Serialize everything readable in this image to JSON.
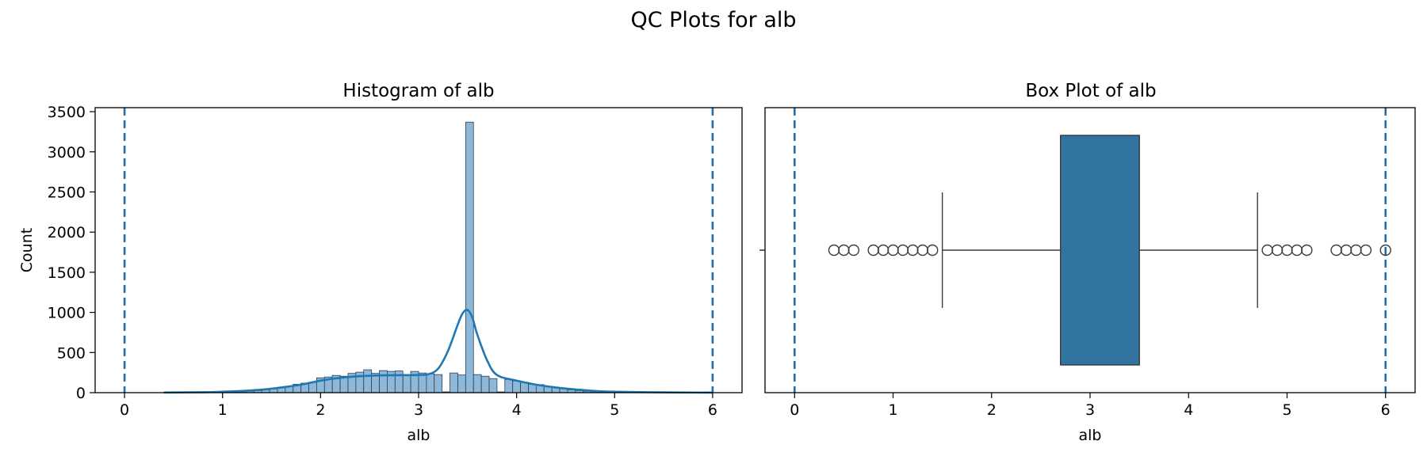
{
  "figure": {
    "title": "QC Plots for alb"
  },
  "colors": {
    "bar_fill": "#8db8da",
    "bar_edge": "#2b3f52",
    "kde": "#1f77b4",
    "box_fill": "#3274a1",
    "box_edge": "#3c3c3c",
    "threshold": "#1f6fb0",
    "flier_edge": "#3c3c3c"
  },
  "chart_data": [
    {
      "type": "bar",
      "title": "Histogram of alb",
      "xlabel": "alb",
      "ylabel": "Count",
      "xlim": [
        -0.3,
        6.3
      ],
      "ylim": [
        0,
        3550
      ],
      "xticks": [
        0,
        1,
        2,
        3,
        4,
        5,
        6
      ],
      "yticks": [
        0,
        500,
        1000,
        1500,
        2000,
        2500,
        3000,
        3500
      ],
      "bin_width": 0.08,
      "bins": [
        {
          "x": 1.12,
          "count": 8
        },
        {
          "x": 1.2,
          "count": 12
        },
        {
          "x": 1.28,
          "count": 18
        },
        {
          "x": 1.36,
          "count": 26
        },
        {
          "x": 1.44,
          "count": 36
        },
        {
          "x": 1.52,
          "count": 48
        },
        {
          "x": 1.6,
          "count": 62
        },
        {
          "x": 1.68,
          "count": 80
        },
        {
          "x": 1.76,
          "count": 105
        },
        {
          "x": 1.84,
          "count": 118
        },
        {
          "x": 1.92,
          "count": 128
        },
        {
          "x": 2.0,
          "count": 185
        },
        {
          "x": 2.08,
          "count": 195
        },
        {
          "x": 2.16,
          "count": 215
        },
        {
          "x": 2.24,
          "count": 205
        },
        {
          "x": 2.32,
          "count": 240
        },
        {
          "x": 2.4,
          "count": 255
        },
        {
          "x": 2.48,
          "count": 285
        },
        {
          "x": 2.56,
          "count": 240
        },
        {
          "x": 2.64,
          "count": 275
        },
        {
          "x": 2.72,
          "count": 265
        },
        {
          "x": 2.8,
          "count": 270
        },
        {
          "x": 2.88,
          "count": 225
        },
        {
          "x": 2.96,
          "count": 265
        },
        {
          "x": 3.04,
          "count": 245
        },
        {
          "x": 3.12,
          "count": 235
        },
        {
          "x": 3.2,
          "count": 225
        },
        {
          "x": 3.28,
          "count": 10
        },
        {
          "x": 3.36,
          "count": 245
        },
        {
          "x": 3.44,
          "count": 220
        },
        {
          "x": 3.52,
          "count": 3370
        },
        {
          "x": 3.6,
          "count": 225
        },
        {
          "x": 3.68,
          "count": 205
        },
        {
          "x": 3.76,
          "count": 175
        },
        {
          "x": 3.84,
          "count": 10
        },
        {
          "x": 3.92,
          "count": 165
        },
        {
          "x": 4.0,
          "count": 145
        },
        {
          "x": 4.08,
          "count": 130
        },
        {
          "x": 4.16,
          "count": 105
        },
        {
          "x": 4.24,
          "count": 100
        },
        {
          "x": 4.32,
          "count": 80
        },
        {
          "x": 4.4,
          "count": 62
        },
        {
          "x": 4.48,
          "count": 48
        },
        {
          "x": 4.56,
          "count": 36
        },
        {
          "x": 4.64,
          "count": 26
        },
        {
          "x": 4.72,
          "count": 18
        },
        {
          "x": 4.8,
          "count": 12
        },
        {
          "x": 4.88,
          "count": 8
        },
        {
          "x": 4.96,
          "count": 5
        },
        {
          "x": 5.04,
          "count": 3
        }
      ],
      "kde": {
        "x": [
          0.4,
          0.8,
          1.0,
          1.2,
          1.4,
          1.6,
          1.8,
          2.0,
          2.2,
          2.4,
          2.6,
          2.8,
          3.0,
          3.1,
          3.2,
          3.3,
          3.4,
          3.45,
          3.5,
          3.55,
          3.6,
          3.7,
          3.8,
          4.0,
          4.2,
          4.4,
          4.6,
          4.8,
          5.0,
          5.5,
          6.0
        ],
        "y": [
          2,
          6,
          12,
          22,
          38,
          65,
          100,
          150,
          185,
          205,
          215,
          218,
          220,
          230,
          300,
          520,
          850,
          990,
          1030,
          930,
          720,
          400,
          220,
          150,
          100,
          65,
          40,
          22,
          12,
          4,
          1
        ]
      },
      "thresholds": [
        0,
        6
      ]
    },
    {
      "type": "box",
      "title": "Box Plot of alb",
      "xlabel": "alb",
      "xlim": [
        -0.3,
        6.3
      ],
      "xticks": [
        0,
        1,
        2,
        3,
        4,
        5,
        6
      ],
      "box": {
        "q1": 2.7,
        "q3": 3.5,
        "median": 3.5,
        "whisker_low": 1.5,
        "whisker_high": 4.7
      },
      "fliers": [
        0.4,
        0.5,
        0.6,
        0.8,
        0.9,
        1.0,
        1.1,
        1.2,
        1.3,
        1.4,
        4.8,
        4.9,
        5.0,
        5.1,
        5.2,
        5.5,
        5.6,
        5.7,
        5.8,
        6.0
      ],
      "thresholds": [
        0,
        6
      ]
    }
  ]
}
